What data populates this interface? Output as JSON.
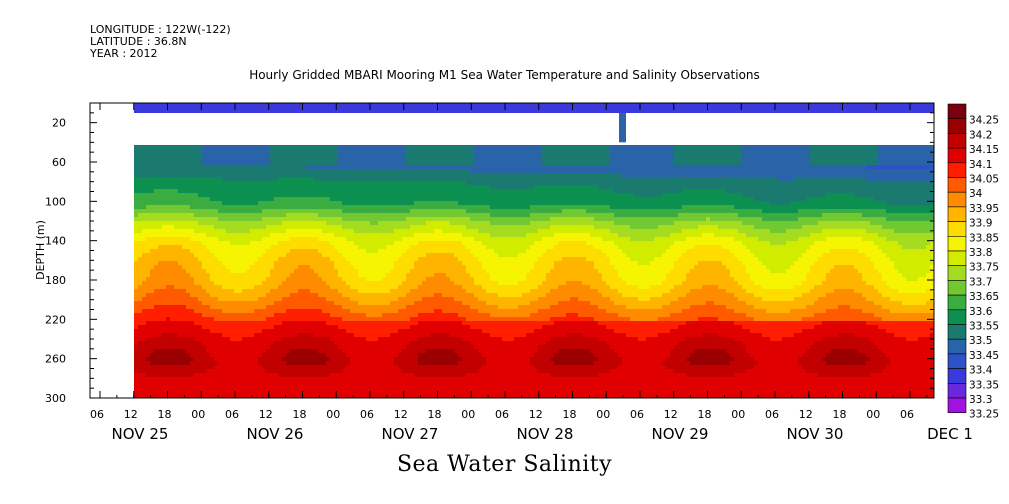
{
  "header": {
    "longitude": "LONGITUDE : 122W(-122)",
    "latitude": "LATITUDE : 36.8N",
    "year": "YEAR : 2012"
  },
  "chart_title": "Hourly Gridded MBARI Mooring M1 Sea Water Temperature and Salinity Observations",
  "bottom_title": "Sea Water Salinity",
  "chart_data": {
    "type": "heatmap",
    "variable": "Sea Water Salinity",
    "title": "Hourly Gridded MBARI Mooring M1 Sea Water Temperature and Salinity Observations",
    "ylabel": "DEPTH (m)",
    "xlabel": "",
    "ylim": [
      300,
      0
    ],
    "y_ticks": [
      20,
      60,
      100,
      140,
      180,
      220,
      260,
      300
    ],
    "x_hour_ticks": [
      "06",
      "12",
      "18",
      "00",
      "06",
      "12",
      "18",
      "00",
      "06",
      "12",
      "18",
      "00",
      "06",
      "12",
      "18",
      "00",
      "06",
      "12",
      "18",
      "00",
      "06",
      "12",
      "18",
      "00",
      "06"
    ],
    "x_date_labels": [
      "NOV 25",
      "NOV 26",
      "NOV 27",
      "NOV 28",
      "NOV 29",
      "NOV 30",
      "DEC  1"
    ],
    "data_start": "NOV 25 12:00",
    "colorbar": {
      "levels": [
        "34.25",
        "34.2",
        "34.15",
        "34.1",
        "34.05",
        "34",
        "33.95",
        "33.9",
        "33.85",
        "33.8",
        "33.75",
        "33.7",
        "33.65",
        "33.6",
        "33.55",
        "33.5",
        "33.45",
        "33.4",
        "33.35",
        "33.3",
        "33.25"
      ],
      "colors": [
        "#9b0000",
        "#c30000",
        "#e00000",
        "#ff1e00",
        "#ff5a00",
        "#ff8c00",
        "#ffb400",
        "#ffdc00",
        "#f6f400",
        "#d2ec00",
        "#a6dc20",
        "#72c830",
        "#3aac40",
        "#0c9050",
        "#1a7a70",
        "#2a64a8",
        "#2e52c8",
        "#3a3adc",
        "#6a28dc",
        "#a012e0"
      ],
      "top_color": "#7a0010",
      "bottom_color": "#c800e0"
    },
    "depth_profile": [
      {
        "depth": 10,
        "salinity": 33.42
      },
      {
        "depth": 40,
        "salinity": 33.5
      },
      {
        "depth": 60,
        "salinity": 33.5
      },
      {
        "depth": 80,
        "salinity": 33.58
      },
      {
        "depth": 100,
        "salinity": 33.62
      },
      {
        "depth": 120,
        "salinity": 33.75
      },
      {
        "depth": 140,
        "salinity": 33.85
      },
      {
        "depth": 160,
        "salinity": 33.9
      },
      {
        "depth": 180,
        "salinity": 33.93
      },
      {
        "depth": 200,
        "salinity": 34.0
      },
      {
        "depth": 220,
        "salinity": 34.08
      },
      {
        "depth": 240,
        "salinity": 34.14
      },
      {
        "depth": 260,
        "salinity": 34.18
      },
      {
        "depth": 280,
        "salinity": 34.13
      },
      {
        "depth": 300,
        "salinity": 34.1
      }
    ]
  }
}
